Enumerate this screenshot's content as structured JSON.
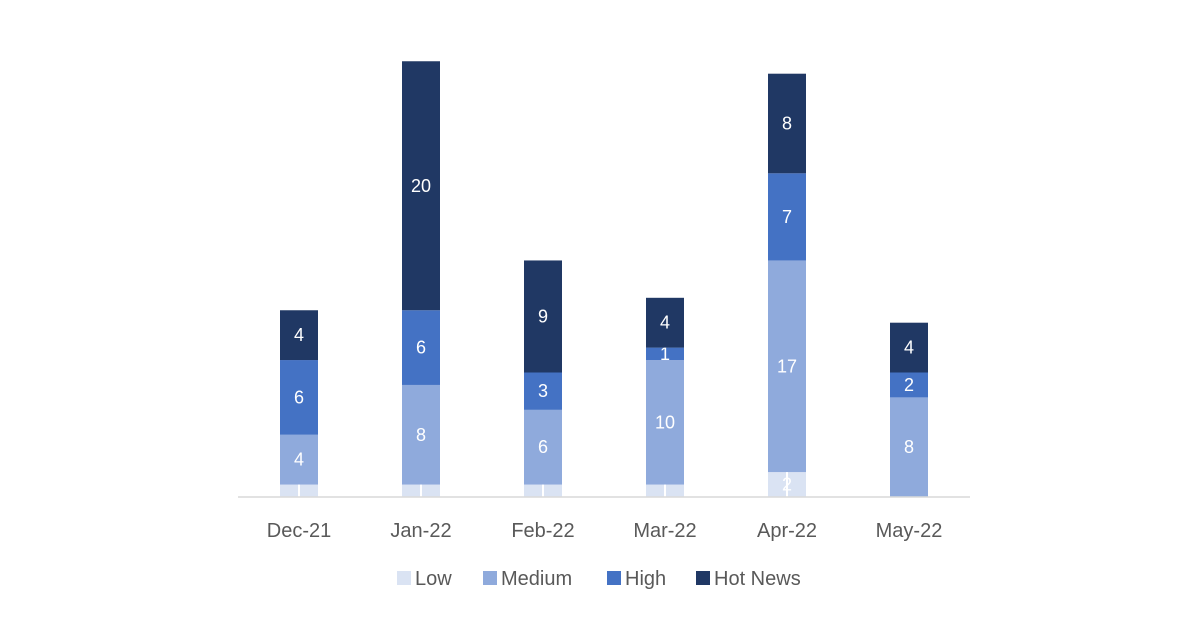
{
  "chart_data": {
    "type": "bar",
    "stacked": true,
    "categories": [
      "Dec-21",
      "Jan-22",
      "Feb-22",
      "Mar-22",
      "Apr-22",
      "May-22"
    ],
    "series": [
      {
        "name": "Low",
        "color": "#dae3f3",
        "values": [
          1,
          1,
          1,
          1,
          2,
          0
        ],
        "labels": [
          "",
          "",
          "",
          "",
          "2",
          ""
        ]
      },
      {
        "name": "Medium",
        "color": "#8faadc",
        "values": [
          4,
          8,
          6,
          10,
          17,
          8
        ],
        "labels": [
          "4",
          "8",
          "6",
          "10",
          "17",
          "8"
        ]
      },
      {
        "name": "High",
        "color": "#4472c4",
        "values": [
          6,
          6,
          3,
          1,
          7,
          2
        ],
        "labels": [
          "6",
          "6",
          "3",
          "1",
          "7",
          "2"
        ]
      },
      {
        "name": "Hot News",
        "color": "#203864",
        "values": [
          4,
          20,
          9,
          4,
          8,
          4
        ],
        "labels": [
          "4",
          "20",
          "9",
          "4",
          "8",
          "4"
        ]
      }
    ],
    "legend_position": "bottom",
    "grid": false,
    "ylim": [
      0,
      35
    ]
  }
}
